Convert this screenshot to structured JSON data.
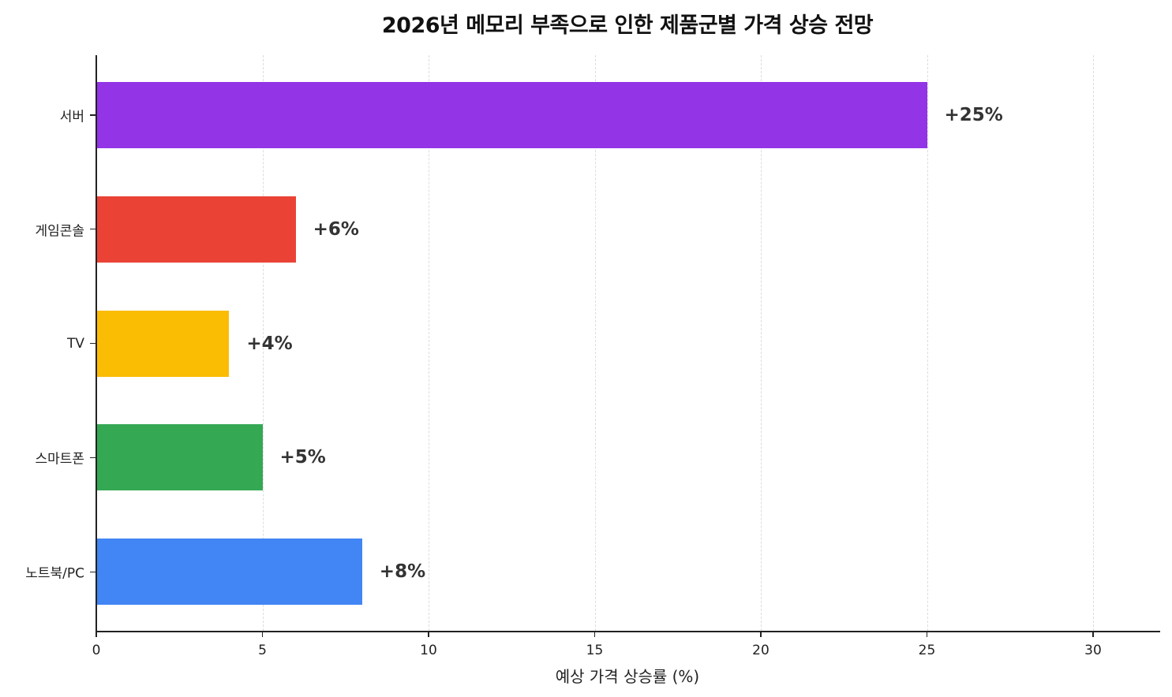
{
  "chart_data": {
    "type": "bar",
    "orientation": "horizontal",
    "title": "2026년 메모리 부족으로 인한 제품군별 가격 상승 전망",
    "xlabel": "예상 가격 상승률 (%)",
    "ylabel": "",
    "categories": [
      "서버",
      "게임콘솔",
      "TV",
      "스마트폰",
      "노트북/PC"
    ],
    "values": [
      25,
      6,
      4,
      5,
      8
    ],
    "value_labels": [
      "+25%",
      "+6%",
      "+4%",
      "+5%",
      "+8%"
    ],
    "colors": [
      "#9334e6",
      "#ea4335",
      "#fbbc04",
      "#34a853",
      "#4285f4"
    ],
    "xlim": [
      0,
      32
    ],
    "xticks": [
      0,
      5,
      10,
      15,
      20,
      25,
      30
    ],
    "xtick_labels": [
      "0",
      "5",
      "10",
      "15",
      "20",
      "25",
      "30"
    ],
    "grid": {
      "x": true,
      "y": false,
      "style": "dashed"
    },
    "legend": null
  }
}
